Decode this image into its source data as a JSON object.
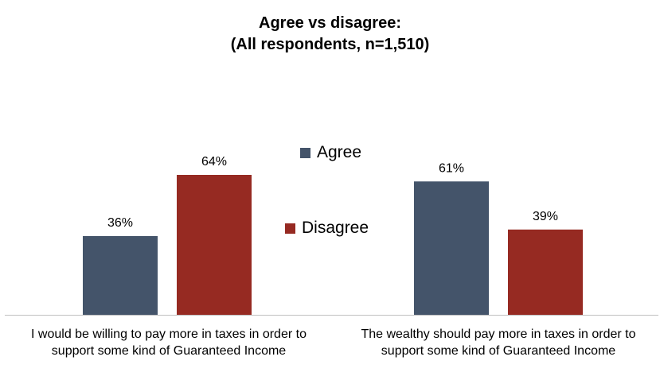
{
  "chart_data": {
    "type": "bar",
    "title": "Agree vs disagree:",
    "subtitle": "(All respondents, n=1,510)",
    "categories": [
      "I would be willing to pay more in taxes in order to support some kind of Guaranteed Income",
      "The wealthy should pay more in taxes in order to support some kind of Guaranteed Income"
    ],
    "category_lines": [
      [
        "I would be willing to pay more in taxes in order to",
        "support some kind of Guaranteed Income"
      ],
      [
        "The wealthy should pay more in taxes in order to",
        "support some kind of Guaranteed Income"
      ]
    ],
    "series": [
      {
        "name": "Agree",
        "values": [
          36,
          61
        ],
        "labels": [
          "36%",
          "61%"
        ],
        "color": "#44546A"
      },
      {
        "name": "Disagree",
        "values": [
          64,
          39
        ],
        "labels": [
          "64%",
          "39%"
        ],
        "color": "#962A22"
      }
    ],
    "ylim": [
      0,
      100
    ],
    "grid": false,
    "legend_position": "center"
  }
}
